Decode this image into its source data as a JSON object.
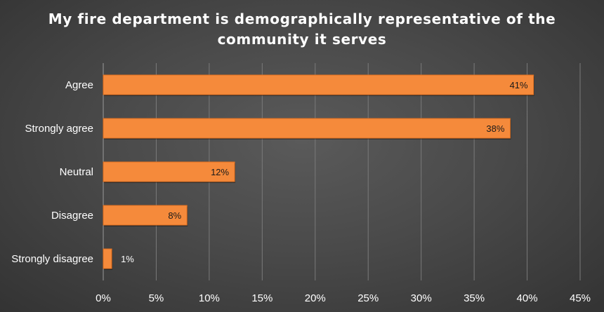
{
  "chart_data": {
    "type": "bar",
    "orientation": "horizontal",
    "title_lines": [
      "My fire department is demographically representative of the",
      "community it serves"
    ],
    "categories": [
      "Agree",
      "Strongly agree",
      "Neutral",
      "Disagree",
      "Strongly disagree"
    ],
    "values": [
      40.6,
      38.4,
      12.4,
      7.9,
      0.8
    ],
    "data_labels": [
      "41%",
      "38%",
      "12%",
      "8%",
      "1%"
    ],
    "xlim": [
      0,
      45
    ],
    "x_ticks": [
      "0%",
      "5%",
      "10%",
      "15%",
      "20%",
      "25%",
      "30%",
      "35%",
      "40%",
      "45%"
    ],
    "x_tick_values": [
      0,
      5,
      10,
      15,
      20,
      25,
      30,
      35,
      40,
      45
    ],
    "grid": "vertical",
    "colors": {
      "bar": "#f58a3b",
      "bar_edge": "#e06f1f",
      "grid": "#7a7a7a",
      "axis_text": "#ffffff",
      "data_label_inside": "#1a1a1a",
      "data_label_outside": "#ffffff"
    }
  }
}
